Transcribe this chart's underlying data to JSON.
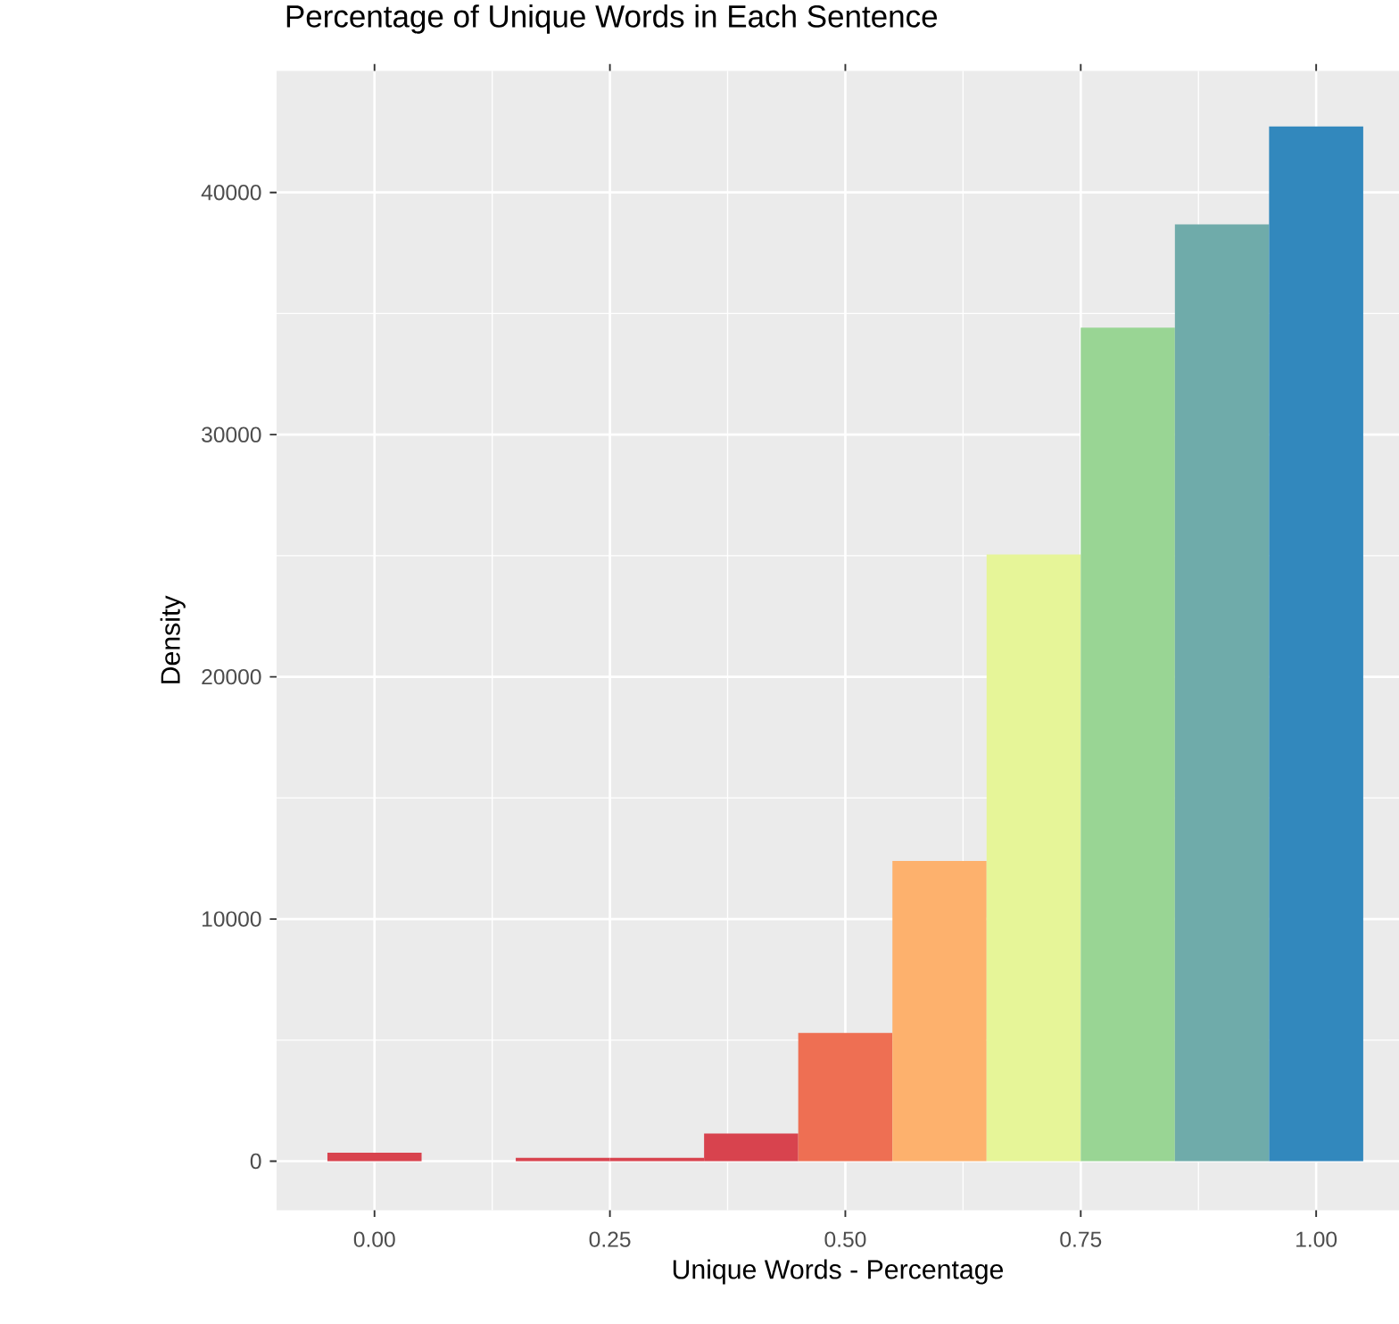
{
  "chart_data": {
    "type": "histogram",
    "title": "Percentage of Unique Words in Each Sentence",
    "xlabel": "Unique Words - Percentage",
    "ylabel": "Density",
    "bins": [
      -0.05,
      0.05,
      0.15,
      0.25,
      0.35,
      0.45,
      0.55,
      0.65,
      0.75,
      0.85,
      0.95,
      1.05
    ],
    "values": [
      350,
      0,
      140,
      140,
      1140,
      5300,
      12400,
      25050,
      34420,
      38680,
      42720
    ],
    "colors": [
      "#d8434e",
      "#d8434e",
      "#d8434e",
      "#d8434e",
      "#d8434e",
      "#ee6f53",
      "#fdb16d",
      "#e6f598",
      "#99d594",
      "#6fabaa",
      "#3288bd"
    ],
    "xlim": [
      -0.104,
      1.088
    ],
    "ylim": [
      -2020,
      45020
    ],
    "xticks": [
      {
        "value": 0,
        "label": "0.00"
      },
      {
        "value": 0.25,
        "label": "0.25"
      },
      {
        "value": 0.5,
        "label": "0.50"
      },
      {
        "value": 0.75,
        "label": "0.75"
      },
      {
        "value": 1,
        "label": "1.00"
      }
    ],
    "yticks": [
      0,
      10000,
      20000,
      30000,
      40000
    ],
    "grid": true
  }
}
